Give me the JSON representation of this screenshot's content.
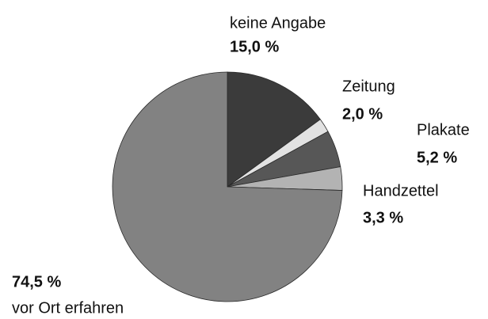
{
  "chart_data": {
    "type": "pie",
    "categories": [
      "keine Angabe",
      "Zeitung",
      "Plakate",
      "Handzettel",
      "vor Ort erfahren"
    ],
    "values": [
      15.0,
      2.0,
      5.2,
      3.3,
      74.5
    ],
    "value_labels": [
      "15,0 %",
      "2,0 %",
      "5,2 %",
      "3,3 %",
      "74,5 %"
    ],
    "colors": [
      "#3b3b3b",
      "#e2e2e2",
      "#575757",
      "#b3b3b3",
      "#828282"
    ]
  }
}
